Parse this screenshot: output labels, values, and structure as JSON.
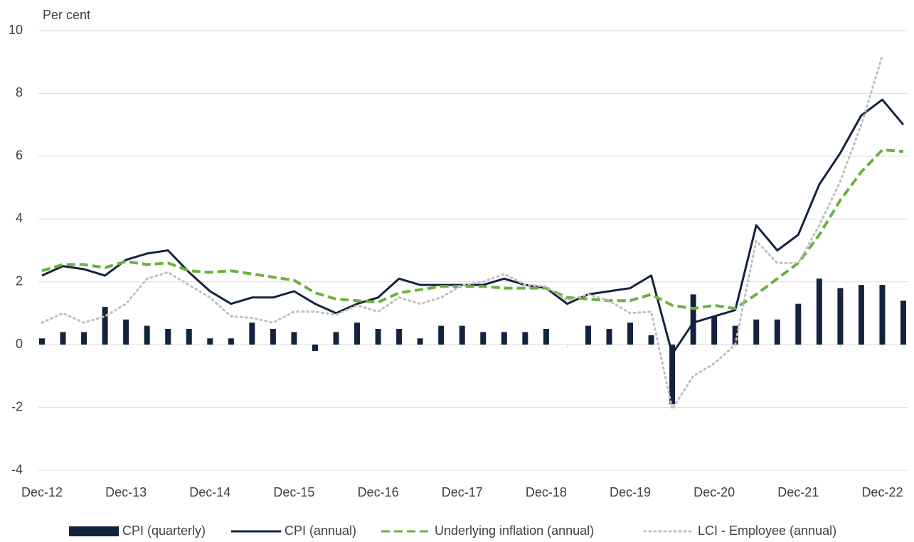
{
  "chart_data": {
    "type": "bar-line",
    "y_label": "Per cent",
    "categories": [
      "Dec-12",
      null,
      null,
      null,
      "Dec-13",
      null,
      null,
      null,
      "Dec-14",
      null,
      null,
      null,
      "Dec-15",
      null,
      null,
      null,
      "Dec-16",
      null,
      null,
      null,
      "Dec-17",
      null,
      null,
      null,
      "Dec-18",
      null,
      null,
      null,
      "Dec-19",
      null,
      null,
      null,
      "Dec-20",
      null,
      null,
      null,
      "Dec-21",
      null,
      null,
      null,
      "Dec-22",
      null
    ],
    "ylim": [
      -4,
      10
    ],
    "yticks": [
      -4,
      -2,
      0,
      2,
      4,
      6,
      8,
      10
    ],
    "grid": true,
    "legend": "bottom",
    "series": [
      {
        "name": "CPI (quarterly)",
        "mark": "bar",
        "color": "#13233f",
        "values": [
          0.2,
          0.4,
          0.4,
          1.2,
          0.8,
          0.6,
          0.5,
          0.5,
          0.2,
          0.2,
          0.7,
          0.5,
          0.4,
          -0.2,
          0.4,
          0.7,
          0.5,
          0.5,
          0.2,
          0.6,
          0.6,
          0.4,
          0.4,
          0.4,
          0.5,
          0.0,
          0.6,
          0.5,
          0.7,
          0.3,
          -1.9,
          1.6,
          0.9,
          0.6,
          0.8,
          0.8,
          1.3,
          2.1,
          1.8,
          1.9,
          1.9,
          1.4
        ]
      },
      {
        "name": "CPI (annual)",
        "mark": "line",
        "dash": "solid",
        "color": "#13233f",
        "values": [
          2.2,
          2.5,
          2.4,
          2.2,
          2.7,
          2.9,
          3.0,
          2.3,
          1.7,
          1.3,
          1.5,
          1.5,
          1.7,
          1.3,
          1.0,
          1.3,
          1.5,
          2.1,
          1.9,
          1.9,
          1.9,
          1.9,
          2.1,
          1.9,
          1.8,
          1.3,
          1.6,
          1.7,
          1.8,
          2.2,
          -0.3,
          0.7,
          0.9,
          1.1,
          3.8,
          3.0,
          3.5,
          5.1,
          6.1,
          7.3,
          7.8,
          7.0
        ]
      },
      {
        "name": "Underlying inflation (annual)",
        "mark": "line",
        "dash": "dashed",
        "color": "#6ab23e",
        "values": [
          2.35,
          2.55,
          2.55,
          2.45,
          2.65,
          2.55,
          2.6,
          2.35,
          2.3,
          2.35,
          2.25,
          2.15,
          2.05,
          1.65,
          1.45,
          1.4,
          1.35,
          1.65,
          1.75,
          1.85,
          1.85,
          1.85,
          1.8,
          1.8,
          1.8,
          1.5,
          1.45,
          1.4,
          1.4,
          1.6,
          1.25,
          1.15,
          1.25,
          1.15,
          1.6,
          2.1,
          2.6,
          3.5,
          4.6,
          5.5,
          6.2,
          6.15
        ]
      },
      {
        "name": "LCI - Employee (annual)",
        "mark": "line",
        "dash": "dotted",
        "color": "#bfbfbf",
        "values": [
          0.7,
          1.0,
          0.7,
          0.9,
          1.3,
          2.1,
          2.3,
          1.9,
          1.5,
          0.9,
          0.85,
          0.7,
          1.05,
          1.05,
          0.95,
          1.25,
          1.05,
          1.5,
          1.3,
          1.5,
          1.9,
          2.0,
          2.25,
          1.9,
          1.85,
          1.4,
          1.6,
          1.4,
          1.0,
          1.05,
          -2.05,
          -1.0,
          -0.6,
          0.0,
          3.3,
          2.6,
          2.6,
          3.8,
          5.2,
          7.0,
          9.2,
          null
        ]
      }
    ]
  }
}
